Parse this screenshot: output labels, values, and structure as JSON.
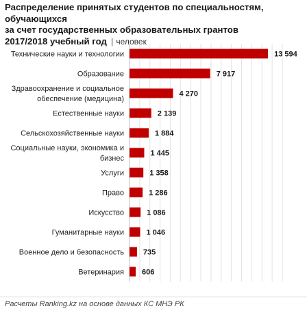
{
  "header": {
    "title_line1": "Распределение принятых студентов по специальностям, обучающихся",
    "title_line2": "за счет государственных образовательных грантов",
    "title_line3": "2017/2018 учебный год",
    "unit": "человек"
  },
  "source": "Расчеты Ranking.kz на основе данных КС МНЭ РК",
  "colors": {
    "bar": "#c00000",
    "grid": "#e3e3e3",
    "axis": "#bfbfbf"
  },
  "chart_data": {
    "type": "bar",
    "orientation": "horizontal",
    "title": "Распределение принятых студентов по специальностям, обучающихся за счет государственных образовательных грантов 2017/2018 учебный год",
    "unit": "человек",
    "grid": true,
    "legend": "none",
    "xlim": [
      0,
      15000
    ],
    "categories": [
      [
        "Технические науки и технологии"
      ],
      [
        "Образование"
      ],
      [
        "Здравоохранение и социальное",
        "обеспечение (медицина)"
      ],
      [
        "Естественные науки"
      ],
      [
        "Сельскохозяйственные науки"
      ],
      [
        "Социальные науки, экономика и",
        "бизнес"
      ],
      [
        "Услуги"
      ],
      [
        "Право"
      ],
      [
        "Искусство"
      ],
      [
        "Гуманитарные науки"
      ],
      [
        "Военное дело и безопасность"
      ],
      [
        "Ветеринария"
      ]
    ],
    "values": [
      13594,
      7917,
      4270,
      2139,
      1884,
      1445,
      1358,
      1286,
      1086,
      1046,
      735,
      606
    ],
    "value_labels": [
      "13 594",
      "7 917",
      "4 270",
      "2 139",
      "1 884",
      "1 445",
      "1 358",
      "1 286",
      "1 086",
      "1 046",
      "735",
      "606"
    ]
  }
}
